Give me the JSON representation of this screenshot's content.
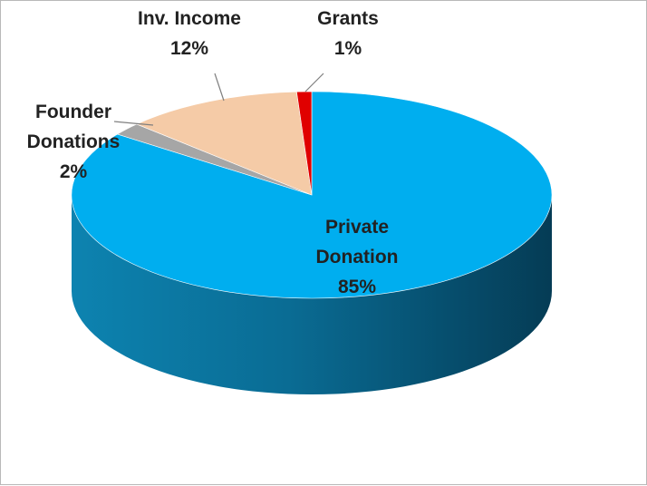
{
  "chart_data": {
    "type": "pie",
    "title": "",
    "slices": [
      {
        "name": "Private\nDonation",
        "value": 85,
        "label": "85%",
        "color": "#00AEEF"
      },
      {
        "name": "Founder\nDonations",
        "value": 2,
        "label": "2%",
        "color": "#A6A6A6"
      },
      {
        "name": "Inv. Income",
        "value": 12,
        "label": "12%",
        "color": "#F5CBA7"
      },
      {
        "name": "Grants",
        "value": 1,
        "label": "1%",
        "color": "#E00000"
      }
    ],
    "style": "3d",
    "legend": "none"
  }
}
